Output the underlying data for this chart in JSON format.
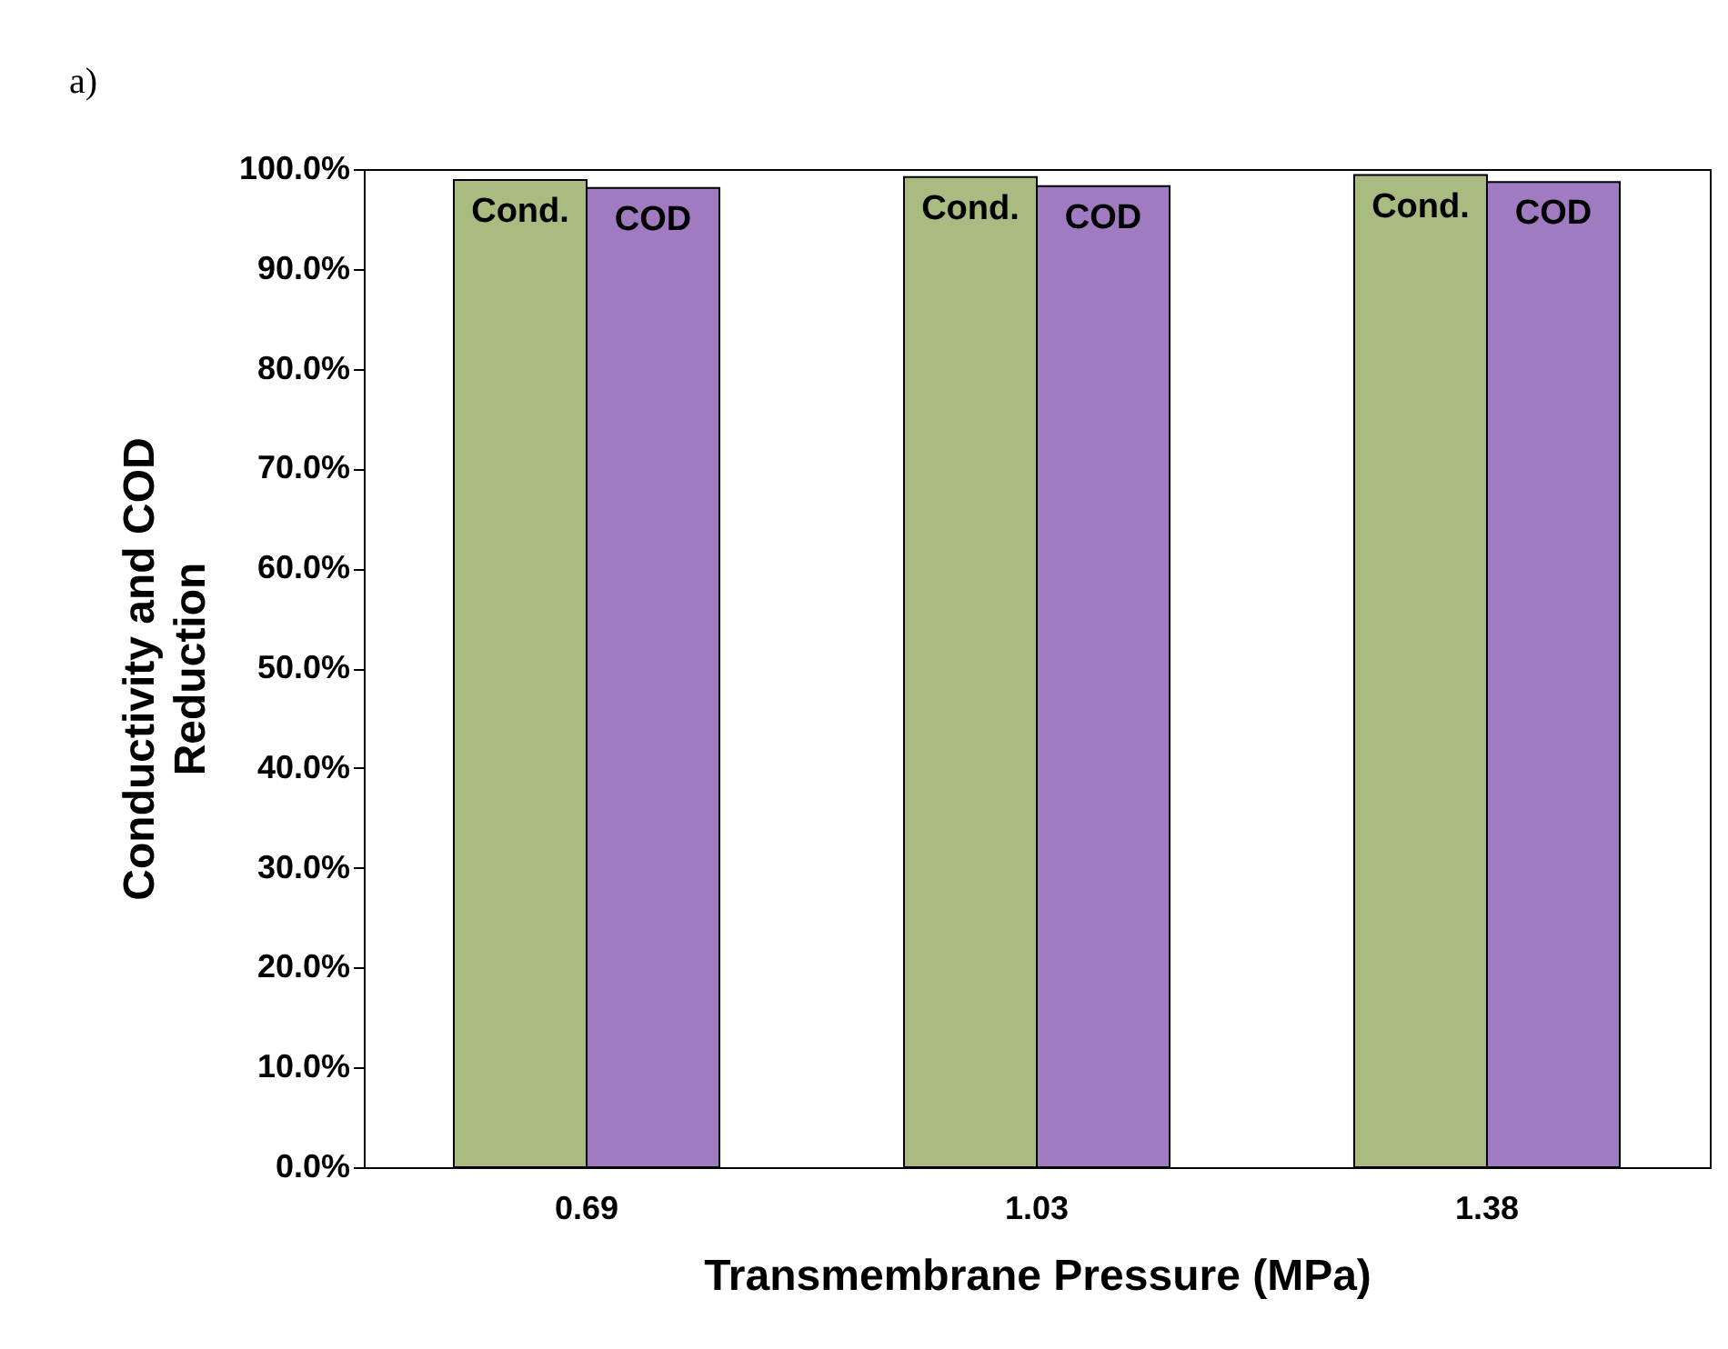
{
  "chart_data": {
    "type": "bar",
    "annotations": [
      "a)"
    ],
    "xlabel": "Transmembrane Pressure (MPa)",
    "ylabel": "Conductivity and COD\nReduction",
    "categories": [
      "0.69",
      "1.03",
      "1.38"
    ],
    "series": [
      {
        "name": "Cond.",
        "color": "#a9bb80",
        "values": [
          98.9,
          99.2,
          99.4
        ]
      },
      {
        "name": "COD",
        "color": "#a17bc1",
        "values": [
          98.1,
          98.3,
          98.7
        ]
      }
    ],
    "ylim": [
      0,
      100
    ],
    "yticks": [
      {
        "value": 0,
        "label": "0.0%"
      },
      {
        "value": 10,
        "label": "10.0%"
      },
      {
        "value": 20,
        "label": "20.0%"
      },
      {
        "value": 30,
        "label": "30.0%"
      },
      {
        "value": 40,
        "label": "40.0%"
      },
      {
        "value": 50,
        "label": "50.0%"
      },
      {
        "value": 60,
        "label": "60.0%"
      },
      {
        "value": 70,
        "label": "70.0%"
      },
      {
        "value": 80,
        "label": "80.0%"
      },
      {
        "value": 90,
        "label": "90.0%"
      },
      {
        "value": 100,
        "label": "100.0%"
      }
    ],
    "grid": false,
    "legend": false
  }
}
